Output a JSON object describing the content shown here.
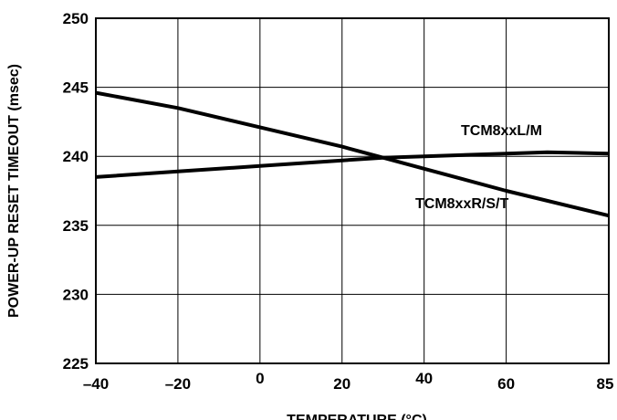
{
  "chart_data": {
    "type": "line",
    "title": "",
    "xlabel": "TEMPERATURE (°C)",
    "ylabel": "POWER-UP RESET TIMEOUT (msec)",
    "xlim": [
      -40,
      85
    ],
    "ylim": [
      225,
      250
    ],
    "x_ticks": [
      -40,
      -20,
      0,
      20,
      40,
      60,
      85
    ],
    "x_tick_labels": [
      "–40",
      "–20",
      "0",
      "20",
      "40",
      "60",
      "85"
    ],
    "y_ticks": [
      225,
      230,
      235,
      240,
      245,
      250
    ],
    "y_tick_labels": [
      "225",
      "230",
      "235",
      "240",
      "245",
      "250"
    ],
    "grid": true,
    "series": [
      {
        "name": "TCM8xxL/M",
        "x": [
          -40,
          -20,
          0,
          20,
          30,
          40,
          60,
          70,
          85
        ],
        "y": [
          238.5,
          238.9,
          239.3,
          239.7,
          239.9,
          240.0,
          240.2,
          240.3,
          240.2
        ]
      },
      {
        "name": "TCM8xxR/S/T",
        "x": [
          -40,
          -20,
          0,
          20,
          30,
          40,
          60,
          85
        ],
        "y": [
          244.6,
          243.5,
          242.1,
          240.7,
          239.9,
          239.1,
          237.5,
          235.7
        ]
      }
    ]
  }
}
